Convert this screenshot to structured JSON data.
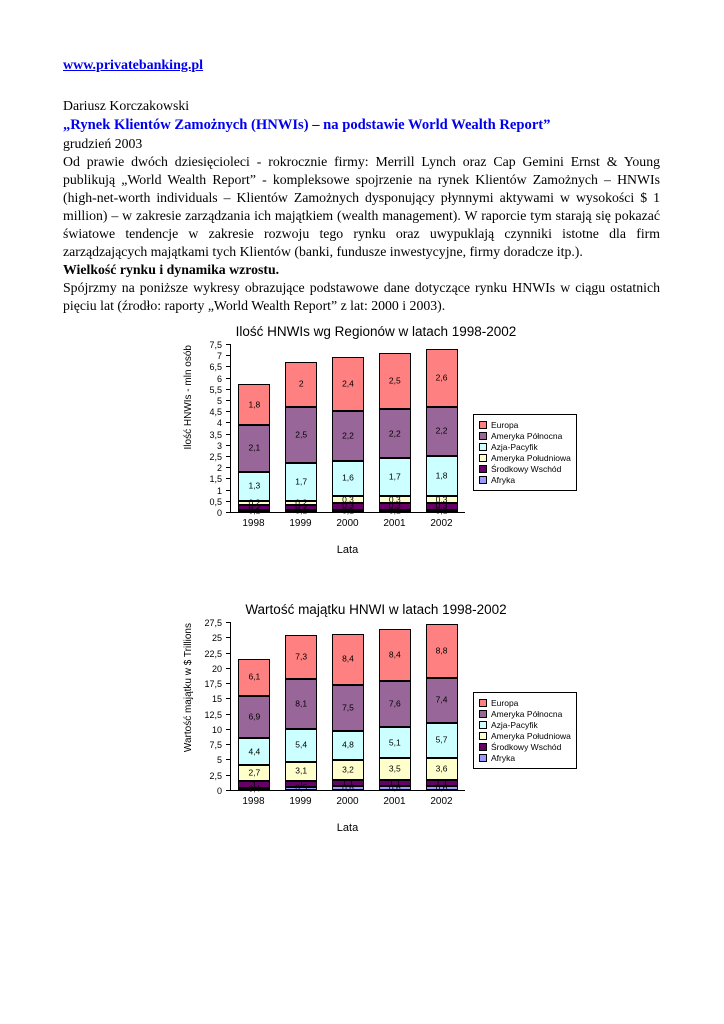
{
  "colors": {
    "link_blue": "#0000EE",
    "title_blue": "#0000EE",
    "text": "#000000"
  },
  "header": {
    "link": "www.privatebanking.pl",
    "author": "Dariusz Korczakowski",
    "title": "„Rynek Klientów Zamożnych (HNWIs) – na podstawie World Wealth Report”",
    "date": "grudzień 2003"
  },
  "paragraphs": {
    "intro": "Od prawie dwóch dziesięcioleci - rokrocznie firmy: Merrill Lynch oraz Cap Gemini Ernst & Young publikują „World Wealth Report” - kompleksowe spojrzenie na rynek Klientów Zamożnych – HNWIs (high-net-worth individuals – Klientów Zamożnych dysponujący płynnymi aktywami w wysokości $ 1 million) – w zakresie zarządzania ich majątkiem (wealth management). W raporcie tym starają się pokazać światowe tendencje w zakresie rozwoju tego rynku oraz uwypuklają czynniki istotne dla firm zarządzających majątkami tych Klientów (banki, fundusze inwestycyjne, firmy doradcze itp.).",
    "section_heading": "Wielkość rynku i dynamika wzrostu.",
    "charts_intro": "Spójrzmy na poniższe wykresy obrazujące podstawowe dane dotyczące rynku HNWIs w ciągu ostatnich pięciu lat (źrodło: raporty „World Wealth Report” z lat: 2000 i 2003)."
  },
  "chart_data": [
    {
      "type": "bar",
      "stacked": true,
      "title": "Ilość HNWIs wg Regionów w latach 1998-2002",
      "xlabel": "Lata",
      "ylabel": "Ilość HNWIs - mln osób",
      "ylim": [
        0,
        7.5
      ],
      "ytick_step": 0.5,
      "grid": false,
      "legend_position": "right",
      "categories": [
        "1998",
        "1999",
        "2000",
        "2001",
        "2002"
      ],
      "series": [
        {
          "name": "Europa",
          "color": "#FF8080",
          "values": [
            1.8,
            2,
            2.4,
            2.5,
            2.6
          ]
        },
        {
          "name": "Ameryka Północna",
          "color": "#996699",
          "values": [
            2.1,
            2.5,
            2.2,
            2.2,
            2.2
          ]
        },
        {
          "name": "Azja-Pacyfik",
          "color": "#CCFFFF",
          "values": [
            1.3,
            1.7,
            1.6,
            1.7,
            1.8
          ]
        },
        {
          "name": "Ameryka Południowa",
          "color": "#FFFFCC",
          "values": [
            0.2,
            0.2,
            0.3,
            0.3,
            0.3
          ]
        },
        {
          "name": "Środkowy Wschód",
          "color": "#660066",
          "values": [
            0.2,
            0.2,
            0.3,
            0.3,
            0.3
          ]
        },
        {
          "name": "Afryka",
          "color": "#9999FF",
          "values": [
            0.1,
            0.1,
            0.1,
            0.1,
            0.1
          ]
        }
      ]
    },
    {
      "type": "bar",
      "stacked": true,
      "title": "Wartość majątku HNWI w latach 1998-2002",
      "xlabel": "Lata",
      "ylabel": "Wartość majątku w $ Trillions",
      "ylim": [
        0,
        27.5
      ],
      "ytick_step": 2.5,
      "grid": false,
      "legend_position": "right",
      "categories": [
        "1998",
        "1999",
        "2000",
        "2001",
        "2002"
      ],
      "series": [
        {
          "name": "Europa",
          "color": "#FF8080",
          "values": [
            6.1,
            7.3,
            8.4,
            8.4,
            8.8
          ]
        },
        {
          "name": "Ameryka Północna",
          "color": "#996699",
          "values": [
            6.9,
            8.1,
            7.5,
            7.6,
            7.4
          ]
        },
        {
          "name": "Azja-Pacyfik",
          "color": "#CCFFFF",
          "values": [
            4.4,
            5.4,
            4.8,
            5.1,
            5.7
          ]
        },
        {
          "name": "Ameryka Południowa",
          "color": "#FFFFCC",
          "values": [
            2.7,
            3.1,
            3.2,
            3.5,
            3.6
          ]
        },
        {
          "name": "Środkowy Wschód",
          "color": "#660066",
          "values": [
            1.0,
            1.0,
            1.1,
            1.1,
            1.1
          ]
        },
        {
          "name": "Afryka",
          "color": "#9999FF",
          "values": [
            0.4,
            0.5,
            0.6,
            0.6,
            0.6
          ]
        }
      ]
    }
  ]
}
